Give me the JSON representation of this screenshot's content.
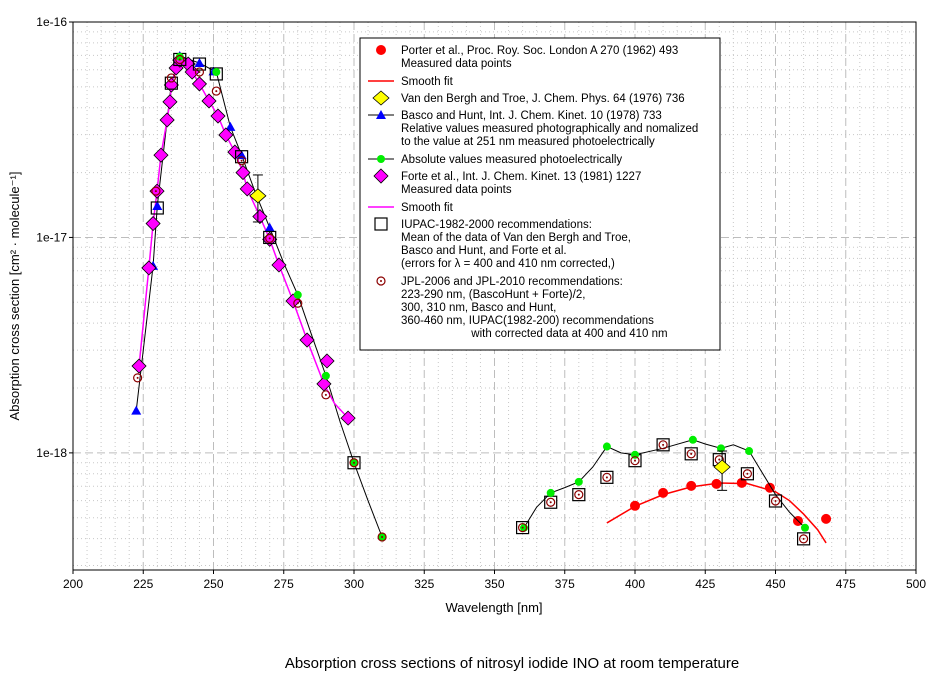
{
  "chart_data": {
    "type": "scatter",
    "title": "Absorption cross sections of nitrosyl iodide INO at room temperature",
    "xlabel": "Wavelength [nm]",
    "ylabel": "Absorption cross section [cm² · molecule⁻¹]",
    "xlim": [
      200,
      500
    ],
    "ylim": [
      2.86e-19,
      1e-16
    ],
    "yscale": "log",
    "grid": true,
    "legend_placement": "top-center",
    "x_ticks": [
      "200",
      "225",
      "250",
      "275",
      "300",
      "325",
      "350",
      "375",
      "400",
      "425",
      "450",
      "475",
      "500"
    ],
    "x_tick_values": [
      200,
      225,
      250,
      275,
      300,
      325,
      350,
      375,
      400,
      425,
      450,
      475,
      500
    ],
    "y_ticks": [
      "1e-16",
      "1e-17",
      "1e-18"
    ],
    "y_tick_values": [
      1e-16,
      1e-17,
      1e-18
    ],
    "colors": {
      "porter": "#ff0000",
      "vdb": "#ffff00",
      "basco": "#0000ff",
      "absolute": "#00ee00",
      "forte": "#ff00ff",
      "jpl": "#8b0000",
      "line": "#000000"
    },
    "series": [
      {
        "key": "porter",
        "name": "Porter et al. measured data points",
        "marker": "circle",
        "points": [
          [
            400,
            5.68e-19
          ],
          [
            410,
            6.52e-19
          ],
          [
            420,
            7.03e-19
          ],
          [
            429,
            7.18e-19
          ],
          [
            438,
            7.26e-19
          ],
          [
            448,
            6.89e-19
          ],
          [
            458,
            4.83e-19
          ],
          [
            468,
            4.94e-19
          ]
        ]
      },
      {
        "key": "porter_fit",
        "name": "Porter smooth fit",
        "marker": "line",
        "points": [
          [
            390,
            4.73e-19
          ],
          [
            400,
            5.65e-19
          ],
          [
            410,
            6.4e-19
          ],
          [
            420,
            6.95e-19
          ],
          [
            430,
            7.25e-19
          ],
          [
            440,
            7.2e-19
          ],
          [
            450,
            6.6e-19
          ],
          [
            455,
            6e-19
          ],
          [
            460,
            5.2e-19
          ],
          [
            465,
            4.4e-19
          ],
          [
            468,
            3.82e-19
          ]
        ]
      },
      {
        "key": "line_short",
        "name": "Basco and Hunt line (short wavelengths)",
        "marker": "line",
        "points": [
          [
            222.5,
            1.57e-18
          ],
          [
            228.5,
            7.38e-18
          ],
          [
            230,
            1.4e-17
          ],
          [
            235,
            5.2e-17
          ],
          [
            238,
            6.95e-17
          ],
          [
            245,
            6.45e-17
          ],
          [
            251,
            5.86e-17
          ],
          [
            256,
            3.26e-17
          ],
          [
            260,
            2.41e-17
          ],
          [
            265,
            1.6e-17
          ],
          [
            270,
            1.11e-17
          ],
          [
            275,
            7.6e-18
          ],
          [
            280,
            5.41e-18
          ],
          [
            285,
            3.5e-18
          ],
          [
            290,
            2.28e-18
          ],
          [
            295,
            1.4e-18
          ],
          [
            300,
            9e-19
          ],
          [
            305,
            6e-19
          ],
          [
            310,
            4.07e-19
          ]
        ]
      },
      {
        "key": "line_long",
        "name": "Basco and Hunt line (long wavelengths)",
        "marker": "line",
        "points": [
          [
            360.5,
            4.49e-19
          ],
          [
            365,
            5.6e-19
          ],
          [
            370,
            6.52e-19
          ],
          [
            375,
            6.9e-19
          ],
          [
            380,
            7.34e-19
          ],
          [
            385,
            8.6e-19
          ],
          [
            390,
            1.07e-18
          ],
          [
            395,
            1e-18
          ],
          [
            400,
            9.8e-19
          ],
          [
            410,
            1.05e-18
          ],
          [
            420.6,
            1.15e-18
          ],
          [
            425,
            1.1e-18
          ],
          [
            430.6,
            1.05e-18
          ],
          [
            435,
            1.09e-18
          ],
          [
            440.6,
            1.02e-18
          ],
          [
            445,
            8.2e-19
          ],
          [
            450,
            6.4e-19
          ],
          [
            455,
            5.3e-19
          ],
          [
            460.5,
            4.49e-19
          ]
        ]
      },
      {
        "key": "forte_fit",
        "name": "Forte smooth fit",
        "marker": "line",
        "points": [
          [
            223.5,
            2.53e-18
          ],
          [
            227,
            7.22e-18
          ],
          [
            228.5,
            1.16e-17
          ],
          [
            229.9,
            1.64e-17
          ],
          [
            231.3,
            2.41e-17
          ],
          [
            233.5,
            3.51e-17
          ],
          [
            234.5,
            4.26e-17
          ],
          [
            235,
            5.1e-17
          ],
          [
            236.7,
            6.12e-17
          ],
          [
            238,
            6.65e-17
          ],
          [
            241,
            6.38e-17
          ],
          [
            242.4,
            5.86e-17
          ],
          [
            245,
            5.16e-17
          ],
          [
            248.4,
            4.3e-17
          ],
          [
            251.6,
            3.66e-17
          ],
          [
            254.4,
            2.99e-17
          ],
          [
            257.6,
            2.49e-17
          ],
          [
            260.5,
            2e-17
          ],
          [
            262,
            1.68e-17
          ],
          [
            266.5,
            1.25e-17
          ],
          [
            270,
            9.8e-18
          ],
          [
            273.3,
            7.45e-18
          ],
          [
            278.3,
            5.07e-18
          ],
          [
            283.3,
            3.34e-18
          ],
          [
            289.3,
            2.09e-18
          ],
          [
            293,
            1.7e-18
          ],
          [
            297.9,
            1.45e-18
          ]
        ]
      },
      {
        "key": "basco",
        "name": "Basco and Hunt",
        "marker": "triangle",
        "points": [
          [
            222.5,
            1.57e-18
          ],
          [
            228.5,
            7.38e-18
          ],
          [
            230,
            1.4e-17
          ],
          [
            238,
            6.95e-17
          ],
          [
            245,
            6.45e-17
          ],
          [
            250,
            5.9e-17
          ],
          [
            256,
            3.26e-17
          ],
          [
            260,
            2.41e-17
          ],
          [
            270,
            1.11e-17
          ]
        ]
      },
      {
        "key": "forte",
        "name": "Forte et al. measured data points",
        "marker": "diamond",
        "points": [
          [
            223.5,
            2.53e-18
          ],
          [
            227,
            7.22e-18
          ],
          [
            228.5,
            1.16e-17
          ],
          [
            229.9,
            1.64e-17
          ],
          [
            231.3,
            2.41e-17
          ],
          [
            233.5,
            3.51e-17
          ],
          [
            234.5,
            4.26e-17
          ],
          [
            235,
            5.1e-17
          ],
          [
            236.7,
            6.12e-17
          ],
          [
            238,
            6.65e-17
          ],
          [
            241,
            6.38e-17
          ],
          [
            242.4,
            5.86e-17
          ],
          [
            245,
            5.16e-17
          ],
          [
            248.4,
            4.3e-17
          ],
          [
            251.6,
            3.66e-17
          ],
          [
            254.4,
            2.99e-17
          ],
          [
            257.6,
            2.49e-17
          ],
          [
            260.5,
            2e-17
          ],
          [
            262,
            1.68e-17
          ],
          [
            266.5,
            1.25e-17
          ],
          [
            270,
            9.8e-18
          ],
          [
            273.3,
            7.45e-18
          ],
          [
            278.3,
            5.07e-18
          ],
          [
            283.3,
            3.34e-18
          ],
          [
            289.3,
            2.09e-18
          ],
          [
            290.4,
            2.67e-18
          ],
          [
            297.9,
            1.45e-18
          ]
        ]
      },
      {
        "key": "iupac",
        "name": "IUPAC-1982-2000 recommendations",
        "marker": "square",
        "points": [
          [
            230,
            1.37e-17
          ],
          [
            235,
            5.2e-17
          ],
          [
            238,
            6.7e-17
          ],
          [
            245,
            6.38e-17
          ],
          [
            251,
            5.74e-17
          ],
          [
            260,
            2.37e-17
          ],
          [
            270,
            1e-17
          ],
          [
            300,
            9e-19
          ],
          [
            360,
            4.5e-19
          ],
          [
            370,
            5.9e-19
          ],
          [
            380,
            6.4e-19
          ],
          [
            390,
            7.7e-19
          ],
          [
            400,
            9.2e-19
          ],
          [
            410,
            1.09e-18
          ],
          [
            420,
            9.9e-19
          ],
          [
            430,
            9.3e-19
          ],
          [
            440,
            8e-19
          ],
          [
            450,
            5.98e-19
          ],
          [
            460,
            3.99e-19
          ]
        ]
      },
      {
        "key": "absolute",
        "name": "Absolute values measured photoelectrically",
        "marker": "circle",
        "points": [
          [
            238,
            6.9e-17
          ],
          [
            251,
            5.86e-17
          ],
          [
            280,
            5.41e-18
          ],
          [
            290,
            2.28e-18
          ],
          [
            300,
            9e-19
          ],
          [
            310,
            4.07e-19
          ],
          [
            360.5,
            4.49e-19
          ],
          [
            370,
            6.52e-19
          ],
          [
            380,
            7.34e-19
          ],
          [
            390,
            1.07e-18
          ],
          [
            400,
            9.8e-19
          ],
          [
            420.6,
            1.15e-18
          ],
          [
            430.6,
            1.05e-18
          ],
          [
            440.6,
            1.02e-18
          ],
          [
            460.5,
            4.49e-19
          ]
        ]
      },
      {
        "key": "jpl",
        "name": "JPL-2006 and JPL-2010 recommendations",
        "marker": "ring",
        "points": [
          [
            223,
            2.23e-18
          ],
          [
            229.5,
            1.64e-17
          ],
          [
            235,
            5.5e-17
          ],
          [
            238,
            6.7e-17
          ],
          [
            245,
            5.86e-17
          ],
          [
            251,
            4.78e-17
          ],
          [
            260,
            2.27e-17
          ],
          [
            270,
            9.9e-18
          ],
          [
            280,
            4.95e-18
          ],
          [
            290,
            1.86e-18
          ],
          [
            300,
            9e-19
          ],
          [
            310,
            4.07e-19
          ],
          [
            360,
            4.5e-19
          ],
          [
            370,
            5.9e-19
          ],
          [
            380,
            6.4e-19
          ],
          [
            390,
            7.7e-19
          ],
          [
            400,
            9.2e-19
          ],
          [
            410,
            1.09e-18
          ],
          [
            420,
            9.9e-19
          ],
          [
            430,
            9.3e-19
          ],
          [
            440,
            8e-19
          ],
          [
            450,
            5.98e-19
          ],
          [
            460,
            3.99e-19
          ]
        ]
      },
      {
        "key": "vdb",
        "name": "Van den Bergh and Troe",
        "marker": "diamond-yellow",
        "points": [
          [
            265.8,
            1.56e-17
          ],
          [
            431,
            8.6e-19
          ]
        ],
        "error_low": [
          1.18e-17,
          6.7e-19
        ],
        "error_high": [
          1.95e-17,
          1.02e-18
        ]
      }
    ],
    "legend": [
      {
        "symbol": "porter",
        "lines": [
          "Porter et al., Proc. Roy. Soc. London A 270 (1962) 493",
          "Measured data points"
        ]
      },
      {
        "symbol": "porter_fit",
        "lines": [
          "Smooth fit"
        ]
      },
      {
        "symbol": "vdb",
        "lines": [
          "Van den Bergh and Troe, J. Chem. Phys. 64 (1976) 736"
        ]
      },
      {
        "symbol": "basco",
        "lines": [
          "Basco and Hunt, Int. J. Chem. Kinet. 10 (1978) 733",
          "Relative values measured photographically and nomalized",
          "to the value at 251 nm measured photoelectrically"
        ]
      },
      {
        "symbol": "absolute",
        "lines": [
          "Absolute values measured photoelectrically"
        ]
      },
      {
        "symbol": "forte",
        "lines": [
          "Forte et al., Int. J. Chem. Kinet. 13 (1981) 1227",
          "Measured data points"
        ]
      },
      {
        "symbol": "forte_fit",
        "lines": [
          "Smooth fit"
        ]
      },
      {
        "symbol": "iupac",
        "lines": [
          "IUPAC-1982-2000 recommendations:",
          "Mean of the data of Van den Bergh and Troe,",
          "Basco and Hunt, and Forte et al.",
          "(errors for λ = 400 and 410 nm corrected,)"
        ]
      },
      {
        "symbol": "jpl",
        "lines": [
          "JPL-2006 and JPL-2010 recommendations:",
          "223-290 nm, (BascoHunt + Forte)/2,",
          "300, 310 nm, Basco and Hunt,",
          "360-460 nm, IUPAC(1982-200) recommendations",
          "                      with corrected data at 400 and 410 nm"
        ]
      }
    ]
  }
}
